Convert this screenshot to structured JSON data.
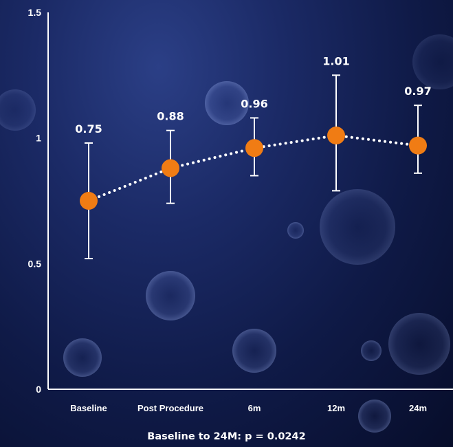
{
  "chart_data": {
    "type": "line",
    "categories": [
      "Baseline",
      "Post Procedure",
      "6m",
      "12m",
      "24m"
    ],
    "values": [
      0.75,
      0.88,
      0.96,
      1.01,
      0.97
    ],
    "data_labels": [
      "0.75",
      "0.88",
      "0.96",
      "1.01",
      "0.97"
    ],
    "error_bars": {
      "lower": [
        0.52,
        0.74,
        0.85,
        0.79,
        0.86
      ],
      "upper": [
        0.98,
        1.03,
        1.08,
        1.25,
        1.13
      ]
    },
    "y_ticks": [
      "0",
      "0.5",
      "1",
      "1.5"
    ],
    "ylim": [
      0,
      1.5
    ],
    "line_style": "dotted",
    "grid": false,
    "footnote": "Baseline to 24M: p = 0.0242",
    "colors": {
      "marker": "#f07c14",
      "line": "#ffffff",
      "axis": "#ffffff",
      "text": "#ffffff",
      "background": "#14205a"
    }
  }
}
